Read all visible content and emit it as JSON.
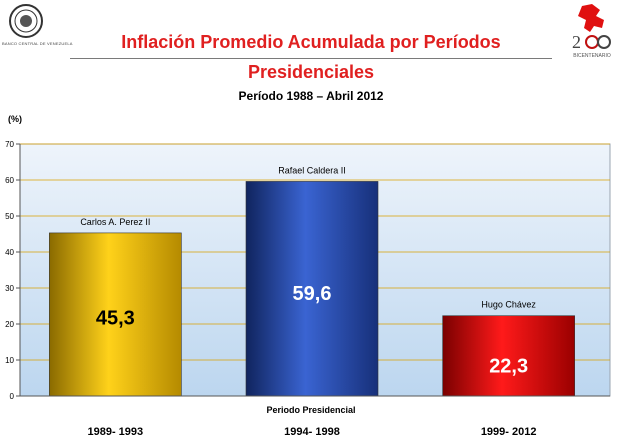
{
  "header": {
    "left_logo_caption": "BANCO CENTRAL DE VENEZUELA",
    "right_logo_caption": "BICENTENARIO"
  },
  "colors": {
    "title": "#e02020",
    "bar_perez": "#f0c000",
    "bar_caldera": "#2a4fb8",
    "bar_chavez": "#e00000",
    "plot_bg_top": "#eef4fb",
    "plot_bg_bottom": "#bcd6ef",
    "gridline": "#d8a000"
  },
  "chart_data": {
    "type": "bar",
    "title_line1": "Inflación Promedio Acumulada por Períodos",
    "title_line2": "Presidenciales",
    "subtitle": "Período 1988 – Abril 2012",
    "ylabel": "(%)",
    "xlabel": "Periodo Presidencial",
    "ylim": [
      0,
      70
    ],
    "yticks": [
      0,
      10,
      20,
      30,
      40,
      50,
      60,
      70
    ],
    "grid": true,
    "categories": [
      "Carlos A. Perez II",
      "Rafael Caldera II",
      "Hugo Chávez"
    ],
    "periods": [
      "1989- 1993",
      "1994- 1998",
      "1999- 2012"
    ],
    "values": [
      45.3,
      59.6,
      22.3
    ],
    "value_labels": [
      "45,3",
      "59,6",
      "22,3"
    ]
  }
}
